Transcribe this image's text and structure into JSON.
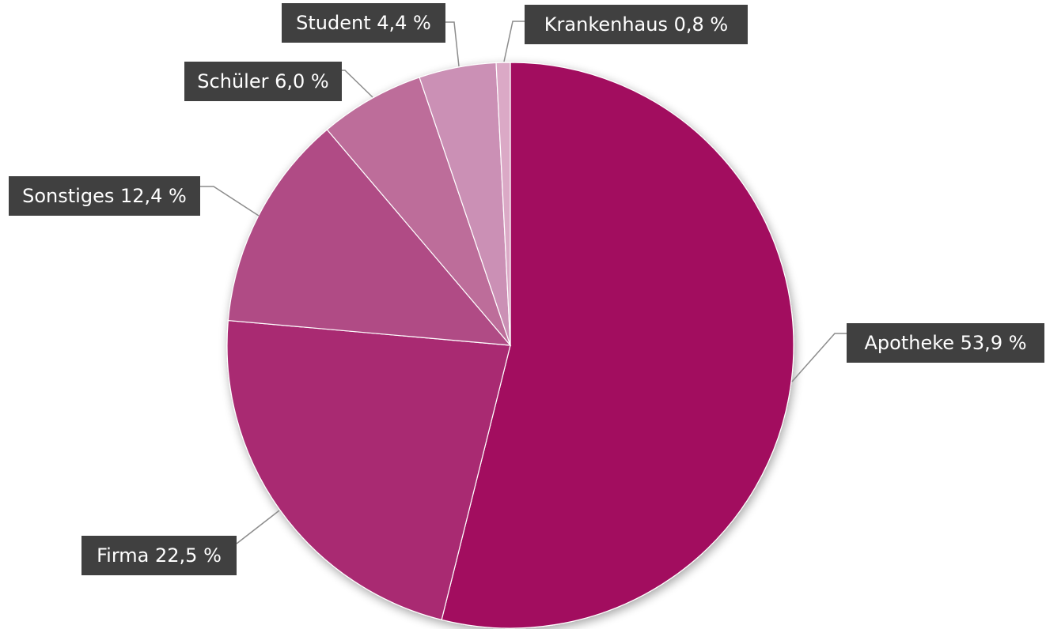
{
  "chart_data": {
    "type": "pie",
    "title": "",
    "start_angle_deg": 0,
    "direction": "clockwise",
    "slices": [
      {
        "label": "Apotheke 53,9 %",
        "name": "Apotheke",
        "value": 53.9,
        "color": "#a20e5f"
      },
      {
        "label": "Firma 22,5 %",
        "name": "Firma",
        "value": 22.5,
        "color": "#a92972"
      },
      {
        "label": "Sonstiges 12,4 %",
        "name": "Sonstiges",
        "value": 12.4,
        "color": "#b04c85"
      },
      {
        "label": "Schüler 6,0 %",
        "name": "Schüler",
        "value": 6.0,
        "color": "#bd6d9a"
      },
      {
        "label": "Student 4,4 %",
        "name": "Student",
        "value": 4.4,
        "color": "#cb90b5"
      },
      {
        "label": "Krankenhaus 0,8 %",
        "name": "Krankenhaus",
        "value": 0.8,
        "color": "#dba9c6"
      }
    ],
    "legend": "none",
    "data_labels": "outside-with-leaders"
  }
}
